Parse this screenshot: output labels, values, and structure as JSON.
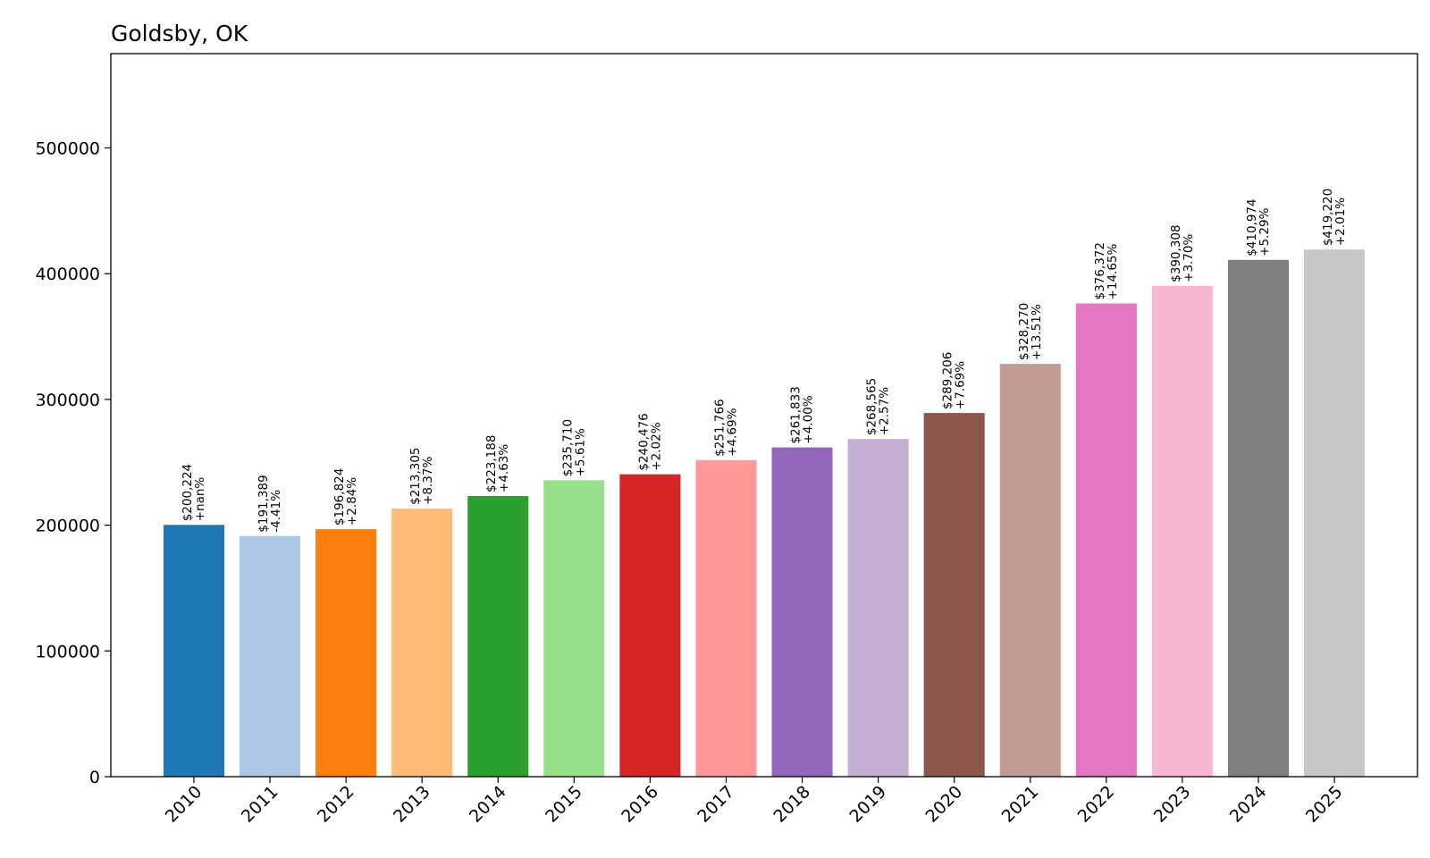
{
  "chart_data": {
    "type": "bar",
    "title": "Goldsby, OK",
    "xlabel": "",
    "ylabel": "",
    "ylim": [
      0,
      575000
    ],
    "yticks": [
      0,
      100000,
      200000,
      300000,
      400000,
      500000
    ],
    "ytick_labels": [
      "0",
      "100000",
      "200000",
      "300000",
      "400000",
      "500000"
    ],
    "categories": [
      "2010",
      "2011",
      "2012",
      "2013",
      "2014",
      "2015",
      "2016",
      "2017",
      "2018",
      "2019",
      "2020",
      "2021",
      "2022",
      "2023",
      "2024",
      "2025"
    ],
    "values": [
      200224,
      191389,
      196824,
      213305,
      223188,
      235710,
      240476,
      251766,
      261833,
      268565,
      289206,
      328270,
      376372,
      390308,
      410974,
      419220
    ],
    "value_labels": [
      "$200,224",
      "$191,389",
      "$196,824",
      "$213,305",
      "$223,188",
      "$235,710",
      "$240,476",
      "$251,766",
      "$261,833",
      "$268,565",
      "$289,206",
      "$328,270",
      "$376,372",
      "$390,308",
      "$410,974",
      "$419,220"
    ],
    "change_labels": [
      "+nan%",
      "-4.41%",
      "+2.84%",
      "+8.37%",
      "+4.63%",
      "+5.61%",
      "+2.02%",
      "+4.69%",
      "+4.00%",
      "+2.57%",
      "+7.69%",
      "+13.51%",
      "+14.65%",
      "+3.70%",
      "+5.29%",
      "+2.01%"
    ],
    "colors": [
      "#1f77b4",
      "#aec7e8",
      "#ff7f0e",
      "#ffbb78",
      "#2ca02c",
      "#98df8a",
      "#d62728",
      "#ff9896",
      "#9467bd",
      "#c5b0d5",
      "#8c564b",
      "#c49c94",
      "#e377c2",
      "#f7b6d2",
      "#7f7f7f",
      "#c7c7c7"
    ],
    "grid": false,
    "legend": "none"
  }
}
